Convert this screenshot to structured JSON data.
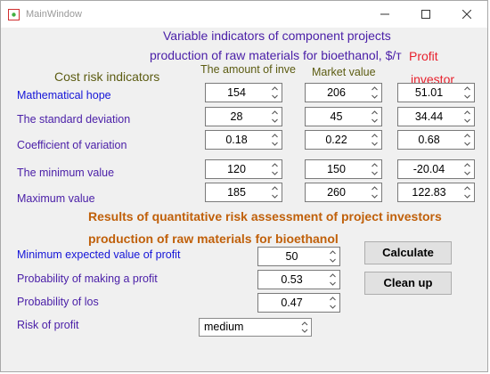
{
  "window": {
    "title": "MainWindow"
  },
  "headings": {
    "line1": "Variable indicators of component projects",
    "line2": "production of raw materials for bioethanol, $/т",
    "profit_label_line1": "Profit",
    "profit_label_line2": "investor",
    "cost_risk_indicators": "Cost risk indicators",
    "col_amount": "The amount of inve",
    "col_market": "Market value"
  },
  "indicators": {
    "rows": [
      {
        "label": "Mathematical hope",
        "amount": "154",
        "market": "206",
        "profit": "51.01"
      },
      {
        "label": "The standard deviation",
        "amount": "28",
        "market": "45",
        "profit": "34.44"
      },
      {
        "label": "Coefficient of variation",
        "amount": "0.18",
        "market": "0.22",
        "profit": "0.68"
      },
      {
        "label": "The minimum value",
        "amount": "120",
        "market": "150",
        "profit": "-20.04"
      },
      {
        "label": "Maximum value",
        "amount": "185",
        "market": "260",
        "profit": "122.83"
      }
    ]
  },
  "results": {
    "heading1": "Results of quantitative risk assessment of project investors",
    "heading2": "production of raw materials for bioethanol",
    "min_expected_label": "Minimum expected value of profit",
    "min_expected_value": "50",
    "prob_profit_label": "Probability of making a profit",
    "prob_profit_value": "0.53",
    "prob_loss_label": "Probability of los",
    "prob_loss_value": "0.47",
    "risk_label": "Risk of profit",
    "risk_value": "medium"
  },
  "buttons": {
    "calculate": "Calculate",
    "clean_up": "Clean up"
  },
  "colors": {
    "heading_purple": "#4b20a8",
    "label_olive": "#5c5c12",
    "profit_red": "#e8222e",
    "results_orange": "#c0600a",
    "blue_label": "#1515d8"
  }
}
